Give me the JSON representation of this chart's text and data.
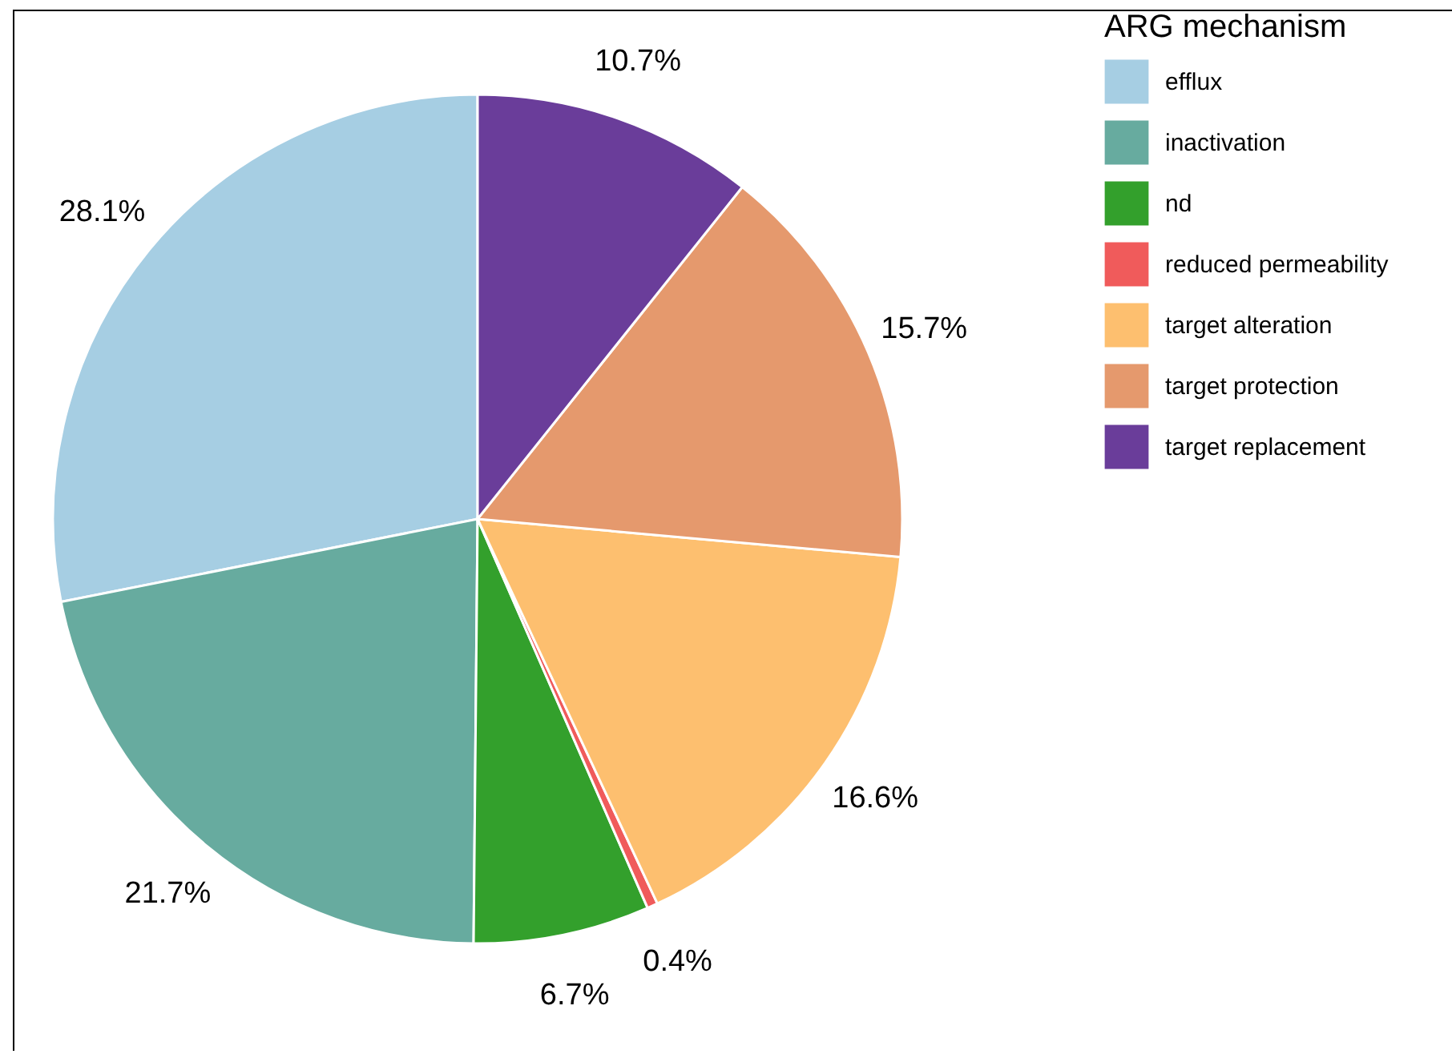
{
  "chart_data": {
    "type": "pie",
    "legend_title": "ARG mechanism",
    "legend": "right",
    "categories": [
      "efflux",
      "inactivation",
      "nd",
      "reduced permeability",
      "target alteration",
      "target protection",
      "target replacement"
    ],
    "values": [
      28.1,
      21.7,
      6.7,
      0.4,
      16.6,
      15.7,
      10.7
    ],
    "value_labels": [
      "28.1%",
      "21.7%",
      "6.7%",
      "0.4%",
      "16.6%",
      "15.7%",
      "10.7%"
    ],
    "colors": [
      "#a6cee3",
      "#67ab9f",
      "#33a02c",
      "#f05b5b",
      "#fdbf6f",
      "#e5996d",
      "#6a3d9a"
    ]
  }
}
